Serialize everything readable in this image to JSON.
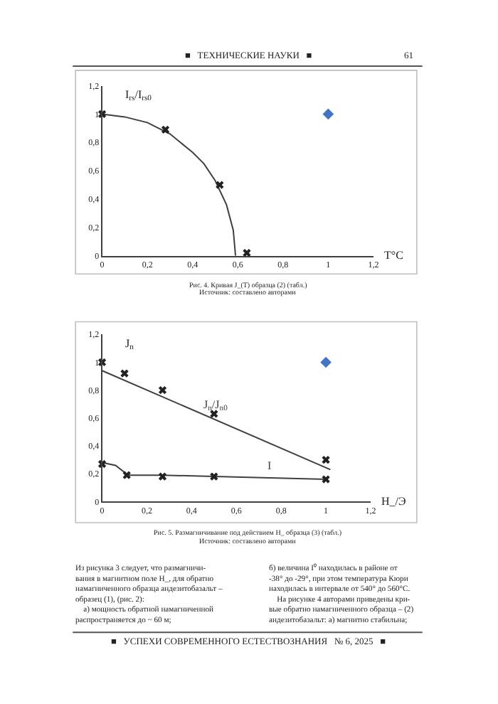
{
  "chart_data": [
    {
      "type": "line",
      "xlabel": "T°C",
      "ylabel": "I$_{rs}$/I$_{rs0}$",
      "xlim": [
        0,
        1.2
      ],
      "ylim": [
        0,
        1.2
      ],
      "xticks": [
        0,
        {
          "value": 0.2,
          "label": "0,2"
        },
        {
          "value": 0.4,
          "label": "0,4"
        },
        {
          "value": 0.6,
          "label": "0,6"
        },
        {
          "value": 0.8,
          "label": "0,8"
        },
        1,
        {
          "value": 1.2,
          "label": "1,2"
        }
      ],
      "yticks": [
        0,
        {
          "value": 0.2,
          "label": "0,2"
        },
        {
          "value": 0.4,
          "label": "0,4"
        },
        {
          "value": 0.6,
          "label": "0,6"
        },
        {
          "value": 0.8,
          "label": "0,8"
        },
        1,
        {
          "value": 1.2,
          "label": "1,2"
        }
      ],
      "grid": false,
      "legend": false,
      "series": [
        {
          "color": "#404040",
          "marker": "none",
          "x": [
            0,
            0.1,
            0.2,
            0.3,
            0.4,
            0.45,
            0.5,
            0.55,
            0.58,
            0.59
          ],
          "values": [
            1,
            0.98,
            0.94,
            0.86,
            0.73,
            0.65,
            0.53,
            0.36,
            0.18,
            0
          ]
        },
        {
          "type": "scatter",
          "color": "#222222",
          "marker": "cross",
          "x": [
            0,
            0.28,
            0.52,
            0.64
          ],
          "values": [
            1,
            0.89,
            0.5,
            0.02
          ]
        },
        {
          "type": "scatter",
          "color": "#4472c4",
          "marker": "diamond",
          "x": [
            1
          ],
          "values": [
            1
          ]
        }
      ],
      "annotations": [
        "■   ТЕХНИЧЕСКИЕ НАУКИ   ■",
        "61",
        "Рис. 4. Кривая J_(T) образца (2) (табл.)",
        "Источник: составлено авторами"
      ]
    },
    {
      "type": "line",
      "xlabel": "H_/Э",
      "ylabel": "J$_{n}$",
      "xlim": [
        0,
        1.2
      ],
      "ylim": [
        0,
        1.2
      ],
      "xticks": [
        0,
        {
          "value": 0.2,
          "label": "0,2"
        },
        {
          "value": 0.4,
          "label": "0,4"
        },
        {
          "value": 0.6,
          "label": "0,6"
        },
        {
          "value": 0.8,
          "label": "0,8"
        },
        1,
        {
          "value": 1.2,
          "label": "1,2"
        }
      ],
      "yticks": [
        0,
        {
          "value": 0.2,
          "label": "0,2"
        },
        {
          "value": 0.4,
          "label": "0,4"
        },
        {
          "value": 0.6,
          "label": "0,6"
        },
        {
          "value": 0.8,
          "label": "0,8"
        },
        1,
        {
          "value": 1.2,
          "label": "1,2"
        }
      ],
      "grid": false,
      "legend": false,
      "series": [
        {
          "name": "J$_{n}$/J$_{n0}$",
          "color": "#404040",
          "marker": "none",
          "x": [
            0,
            1.02
          ],
          "values": [
            0.94,
            0.23
          ]
        },
        {
          "type": "scatter",
          "color": "#222222",
          "marker": "cross",
          "x": [
            0,
            0.1,
            0.27,
            0.5,
            1
          ],
          "values": [
            1,
            0.92,
            0.8,
            0.63,
            0.3
          ]
        },
        {
          "name": "I",
          "color": "#404040",
          "marker": "none",
          "x": [
            0,
            0.06,
            0.1,
            0.11,
            0.27,
            0.5,
            1
          ],
          "values": [
            0.28,
            0.26,
            0.21,
            0.19,
            0.19,
            0.18,
            0.16
          ]
        },
        {
          "type": "scatter",
          "color": "#222222",
          "marker": "cross",
          "x": [
            0,
            0.11,
            0.27,
            0.5,
            1
          ],
          "values": [
            0.27,
            0.19,
            0.18,
            0.18,
            0.16
          ]
        },
        {
          "type": "scatter",
          "color": "#4472c4",
          "marker": "diamond",
          "x": [
            1
          ],
          "values": [
            1
          ]
        }
      ],
      "annotations": [
        "Рис. 5. Размагничивание под действием H_ образца (3) (табл.)",
        "Источник: составлено авторами",
        "Из рисунка 3 следует, что размагничи-\nвания в магнитном поле H_, для обратно\nнамагниченного образца андезитобазальт –\nобразец (1), (рис. 2):\n    а) мощность обратной намагниченной\nраспространяется до ~ 60 м;",
        "б) величина I⁰ находилась в районе от\n-38° до -29°, при этом температура Кюри\nнаходилась в интервале от 540° до 560°C.\n    На рисунке 4 авторами приведены кри-\nвые обратно намагниченного образца – (2)\nандезитобазальт: а) магнитно стабильна;",
        "■   УСПЕХИ СОВРЕМЕННОГО ЕСТЕСТВОЗНАНИЯ   № 6, 2025   ■"
      ]
    }
  ]
}
